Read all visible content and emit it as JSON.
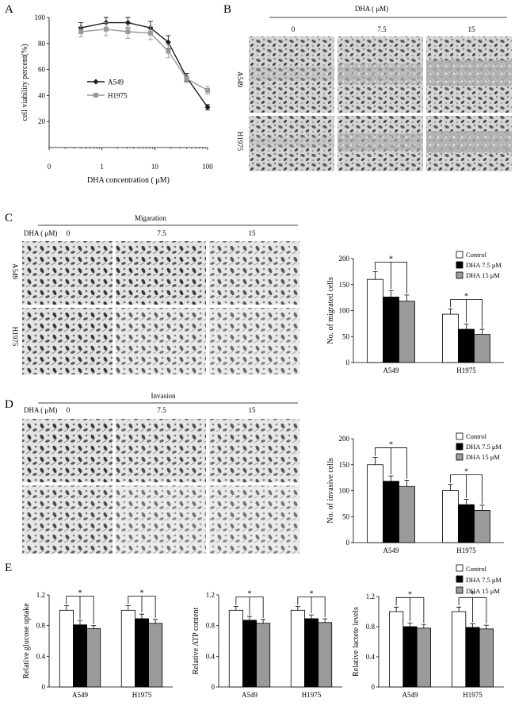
{
  "panels": {
    "A": {
      "label": "A",
      "chart_data": {
        "type": "line",
        "xscale": "log",
        "xlabel": "DHA concentration ( μM)",
        "ylabel": "cell viability percent(%)",
        "ylim": [
          0,
          100
        ],
        "xticks": [
          "0",
          "1",
          "10",
          "100"
        ],
        "yticks": [
          "20",
          "40",
          "60",
          "80",
          "100"
        ],
        "x": [
          0.4,
          1.2,
          3.1,
          8.3,
          18,
          40,
          100
        ],
        "series": [
          {
            "name": "A549",
            "values": [
              92,
              96,
              96,
              92,
              81,
              54,
              31
            ],
            "errors": [
              4,
              4,
              4,
              5,
              5,
              3,
              2
            ],
            "color": "#1a1a1a",
            "marker": "diamond"
          },
          {
            "name": "H1975",
            "values": [
              89,
              91,
              89,
              88,
              74,
              53,
              44
            ],
            "errors": [
              4,
              5,
              5,
              5,
              5,
              3,
              3
            ],
            "color": "#9a9a9a",
            "marker": "square"
          }
        ],
        "legend_position": "center-left"
      }
    },
    "B": {
      "label": "B",
      "treatment_title": "DHA ( μM)",
      "columns": [
        "0",
        "7.5",
        "15"
      ],
      "rows": [
        "A549",
        "H1975"
      ]
    },
    "C": {
      "label": "C",
      "assay_title": "Migaration",
      "treatment_label": "DHA ( μM)",
      "columns": [
        "0",
        "7.5",
        "15"
      ],
      "rows": [
        "A549",
        "H1975"
      ],
      "chart_data": {
        "type": "bar",
        "categories": [
          "A549",
          "H1975"
        ],
        "ylabel": "No. of migrated cells",
        "ylim": [
          0,
          200
        ],
        "yticks": [
          "0",
          "50",
          "100",
          "150",
          "200"
        ],
        "series": [
          {
            "name": "Control",
            "values": [
              160,
              93
            ],
            "errors": [
              15,
              10
            ],
            "color": "#ffffff"
          },
          {
            "name": "DHA  7.5 μM",
            "values": [
              126,
              64
            ],
            "errors": [
              12,
              10
            ],
            "color": "#000000"
          },
          {
            "name": "DHA  15 μM",
            "values": [
              118,
              54
            ],
            "errors": [
              12,
              10
            ],
            "color": "#9a9a9a"
          }
        ],
        "annotation": "*",
        "legend_position": "top-right"
      }
    },
    "D": {
      "label": "D",
      "assay_title": "Invasion",
      "treatment_label": "DHA ( μM)",
      "columns": [
        "0",
        "7.5",
        "15"
      ],
      "chart_data": {
        "type": "bar",
        "categories": [
          "A549",
          "H1975"
        ],
        "ylabel": "No. of invasive cells",
        "ylim": [
          0,
          200
        ],
        "yticks": [
          "0",
          "50",
          "100",
          "150",
          "200"
        ],
        "series": [
          {
            "name": "Control",
            "values": [
              150,
              100
            ],
            "errors": [
              14,
              12
            ],
            "color": "#ffffff"
          },
          {
            "name": "DHA  7.5 μM",
            "values": [
              118,
              73
            ],
            "errors": [
              10,
              10
            ],
            "color": "#000000"
          },
          {
            "name": "DHA  15 μM",
            "values": [
              108,
              62
            ],
            "errors": [
              12,
              10
            ],
            "color": "#9a9a9a"
          }
        ],
        "annotation": "*",
        "legend_position": "top-right"
      }
    },
    "E": {
      "label": "E",
      "legend": [
        "Control",
        "DHA  7.5 μM",
        "DHA  15 μM"
      ],
      "chart_data": [
        {
          "type": "bar",
          "categories": [
            "A549",
            "H1975"
          ],
          "ylabel": "Relative glucose uptake",
          "ylim": [
            0,
            1.2
          ],
          "yticks": [
            "0",
            "0.4",
            "0.8",
            "1.2"
          ],
          "series": [
            {
              "name": "Control",
              "values": [
                1.0,
                1.0
              ],
              "errors": [
                0.06,
                0.06
              ]
            },
            {
              "name": "DHA  7.5 μM",
              "values": [
                0.81,
                0.89
              ],
              "errors": [
                0.06,
                0.06
              ]
            },
            {
              "name": "DHA  15 μM",
              "values": [
                0.76,
                0.83
              ],
              "errors": [
                0.04,
                0.05
              ]
            }
          ],
          "annotation": "*"
        },
        {
          "type": "bar",
          "categories": [
            "A549",
            "H1975"
          ],
          "ylabel": "Relative ATP content",
          "ylim": [
            0,
            1.2
          ],
          "yticks": [
            "0",
            "0.4",
            "0.8",
            "1.2"
          ],
          "series": [
            {
              "name": "Control",
              "values": [
                1.0,
                1.0
              ],
              "errors": [
                0.05,
                0.05
              ]
            },
            {
              "name": "DHA  7.5 μM",
              "values": [
                0.87,
                0.89
              ],
              "errors": [
                0.05,
                0.05
              ]
            },
            {
              "name": "DHA  15 μM",
              "values": [
                0.83,
                0.84
              ],
              "errors": [
                0.05,
                0.05
              ]
            }
          ],
          "annotation": "*"
        },
        {
          "type": "bar",
          "categories": [
            "A549",
            "H1975"
          ],
          "ylabel": "Relative lactete levels",
          "ylim": [
            0,
            1.2
          ],
          "yticks": [
            "0",
            "0.4",
            "0.8",
            "1.2"
          ],
          "series": [
            {
              "name": "Control",
              "values": [
                1.0,
                1.0
              ],
              "errors": [
                0.06,
                0.06
              ]
            },
            {
              "name": "DHA  7.5 μM",
              "values": [
                0.8,
                0.79
              ],
              "errors": [
                0.05,
                0.05
              ]
            },
            {
              "name": "DHA  15 μM",
              "values": [
                0.78,
                0.77
              ],
              "errors": [
                0.05,
                0.05
              ]
            }
          ],
          "annotation": "*"
        }
      ]
    }
  },
  "bar_colors": [
    "#ffffff",
    "#000000",
    "#9a9a9a"
  ]
}
